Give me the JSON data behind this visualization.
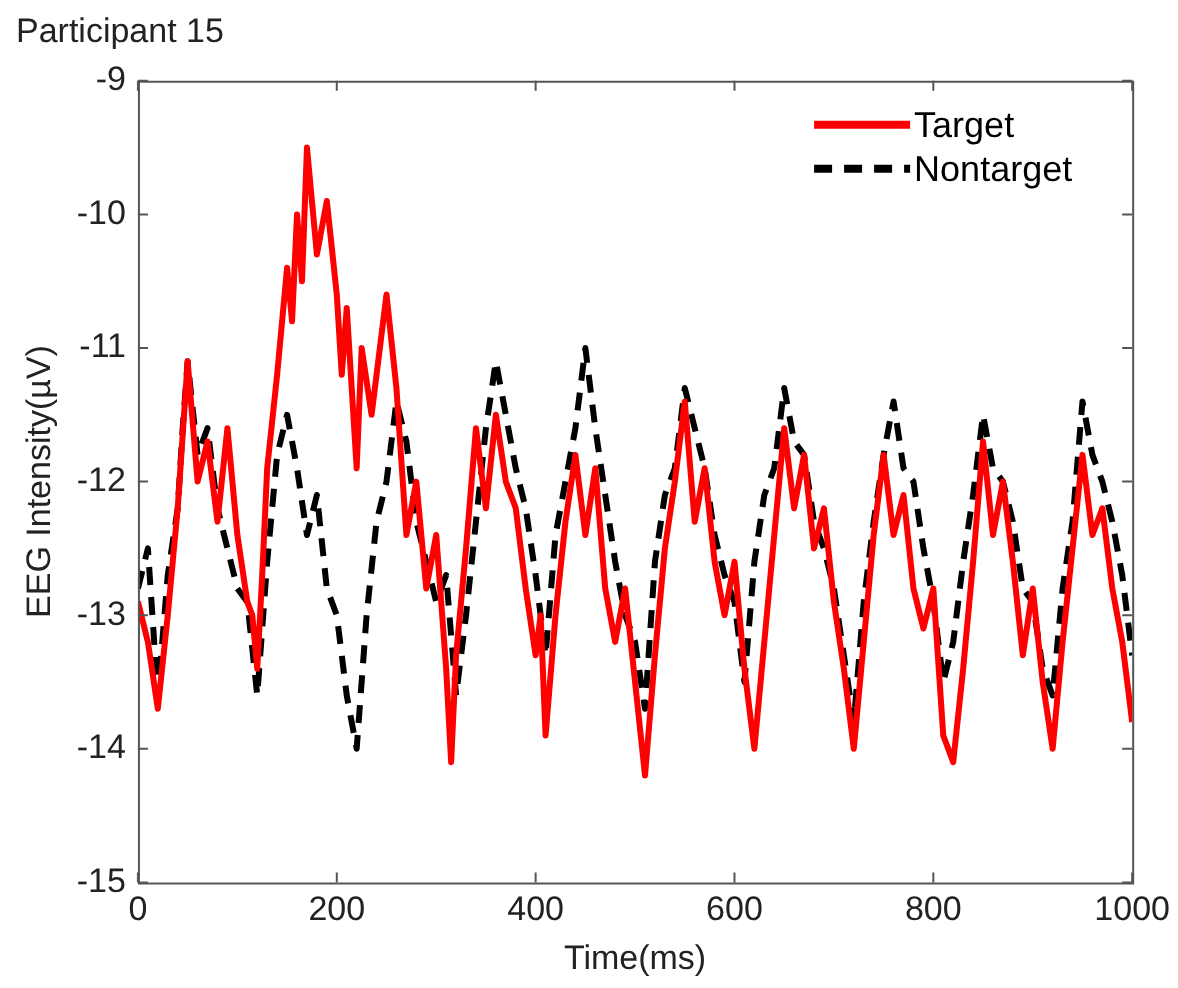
{
  "chart_data": {
    "type": "line",
    "title": "Participant 15",
    "xlabel": "Time(ms)",
    "ylabel": "EEG Intensity(µV)",
    "xlim": [
      0,
      1000
    ],
    "xticks": [
      0,
      200,
      400,
      600,
      800,
      1000
    ],
    "ylim": [
      -15,
      -9
    ],
    "yticks": [
      -15,
      -14,
      -13,
      -12,
      -11,
      -10,
      -9
    ],
    "grid": false,
    "legend": "top right",
    "marker": "none",
    "series": [
      {
        "name": "Target",
        "color": "#ff0000",
        "line_style": "solid",
        "x": [
          0,
          10,
          20,
          30,
          40,
          50,
          60,
          70,
          80,
          90,
          100,
          110,
          115,
          120,
          125,
          130,
          140,
          150,
          155,
          160,
          165,
          170,
          180,
          190,
          200,
          205,
          210,
          215,
          220,
          225,
          235,
          240,
          250,
          260,
          270,
          280,
          290,
          300,
          310,
          315,
          320,
          330,
          340,
          350,
          360,
          370,
          380,
          390,
          400,
          405,
          410,
          420,
          430,
          440,
          450,
          460,
          470,
          480,
          490,
          500,
          510,
          520,
          530,
          540,
          550,
          560,
          570,
          580,
          590,
          600,
          610,
          620,
          630,
          640,
          650,
          660,
          670,
          680,
          690,
          700,
          710,
          720,
          730,
          740,
          750,
          760,
          770,
          780,
          790,
          800,
          810,
          820,
          830,
          840,
          850,
          860,
          870,
          880,
          890,
          900,
          910,
          920,
          930,
          940,
          950,
          960,
          970,
          980,
          990,
          1000
        ],
        "values": [
          -12.9,
          -13.2,
          -13.7,
          -13.0,
          -12.2,
          -11.1,
          -12.0,
          -11.7,
          -12.3,
          -11.6,
          -12.4,
          -12.9,
          -13.0,
          -13.4,
          -12.7,
          -11.9,
          -11.2,
          -10.4,
          -10.8,
          -10.0,
          -10.5,
          -9.5,
          -10.3,
          -9.9,
          -10.6,
          -11.2,
          -10.7,
          -11.3,
          -11.9,
          -11.0,
          -11.5,
          -11.2,
          -10.6,
          -11.3,
          -12.4,
          -12.0,
          -12.8,
          -12.4,
          -13.4,
          -14.1,
          -13.3,
          -12.5,
          -11.6,
          -12.2,
          -11.5,
          -12.0,
          -12.2,
          -12.8,
          -13.3,
          -13.0,
          -13.9,
          -13.0,
          -12.3,
          -11.8,
          -12.4,
          -11.9,
          -12.8,
          -13.2,
          -12.8,
          -13.5,
          -14.2,
          -13.3,
          -12.5,
          -12.0,
          -11.4,
          -12.3,
          -11.9,
          -12.6,
          -13.0,
          -12.6,
          -13.4,
          -14.0,
          -13.2,
          -12.4,
          -11.6,
          -12.2,
          -11.8,
          -12.5,
          -12.2,
          -12.9,
          -13.4,
          -14.0,
          -13.2,
          -12.4,
          -11.8,
          -12.4,
          -12.1,
          -12.8,
          -13.1,
          -12.8,
          -13.9,
          -14.1,
          -13.4,
          -12.6,
          -11.7,
          -12.4,
          -12.0,
          -12.6,
          -13.3,
          -12.8,
          -13.5,
          -14.0,
          -13.2,
          -12.5,
          -11.8,
          -12.4,
          -12.2,
          -12.8,
          -13.2,
          -13.8
        ]
      },
      {
        "name": "Nontarget",
        "color": "#000000",
        "line_style": "dashed",
        "x": [
          0,
          10,
          20,
          30,
          40,
          45,
          50,
          60,
          70,
          80,
          90,
          100,
          110,
          120,
          130,
          140,
          150,
          160,
          170,
          180,
          190,
          200,
          210,
          220,
          230,
          240,
          250,
          260,
          270,
          280,
          290,
          300,
          310,
          320,
          330,
          340,
          350,
          360,
          370,
          380,
          390,
          400,
          410,
          420,
          430,
          440,
          450,
          460,
          470,
          480,
          490,
          500,
          510,
          520,
          530,
          540,
          550,
          560,
          570,
          580,
          590,
          600,
          610,
          620,
          630,
          640,
          650,
          660,
          670,
          680,
          690,
          700,
          710,
          720,
          730,
          740,
          750,
          760,
          770,
          780,
          790,
          800,
          810,
          820,
          830,
          840,
          850,
          860,
          870,
          880,
          890,
          900,
          910,
          920,
          930,
          940,
          950,
          960,
          970,
          980,
          990,
          1000
        ],
        "values": [
          -12.8,
          -12.5,
          -13.6,
          -12.7,
          -12.2,
          -11.6,
          -11.1,
          -11.8,
          -11.6,
          -12.2,
          -12.5,
          -12.8,
          -12.9,
          -13.6,
          -12.6,
          -11.8,
          -11.5,
          -11.9,
          -12.4,
          -12.1,
          -12.8,
          -13.0,
          -13.6,
          -14.0,
          -13.0,
          -12.3,
          -12.0,
          -11.4,
          -11.7,
          -12.3,
          -12.6,
          -12.9,
          -12.7,
          -13.6,
          -13.0,
          -12.3,
          -11.6,
          -11.1,
          -11.5,
          -11.9,
          -12.2,
          -12.7,
          -13.3,
          -12.4,
          -12.0,
          -11.6,
          -11.0,
          -11.6,
          -12.1,
          -12.6,
          -13.0,
          -13.2,
          -13.7,
          -12.6,
          -12.1,
          -11.9,
          -11.3,
          -11.6,
          -11.9,
          -12.4,
          -12.7,
          -12.9,
          -13.5,
          -12.6,
          -12.1,
          -11.9,
          -11.3,
          -11.7,
          -11.8,
          -12.3,
          -12.5,
          -12.8,
          -13.3,
          -13.8,
          -12.9,
          -12.3,
          -11.8,
          -11.4,
          -11.9,
          -12.0,
          -12.5,
          -12.9,
          -13.5,
          -13.2,
          -12.6,
          -12.1,
          -11.5,
          -11.9,
          -12.0,
          -12.3,
          -12.8,
          -12.9,
          -13.4,
          -13.6,
          -12.8,
          -12.3,
          -11.4,
          -11.8,
          -12.0,
          -12.3,
          -12.7,
          -13.3
        ]
      }
    ]
  }
}
